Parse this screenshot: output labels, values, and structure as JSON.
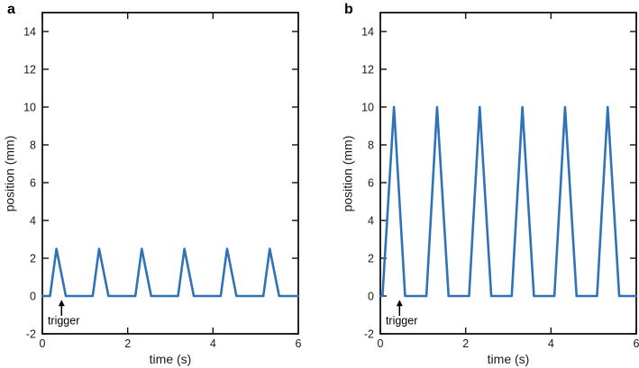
{
  "figure": {
    "background": "#ffffff",
    "description": "Two-panel line figure showing triangular position pulses vs time"
  },
  "style": {
    "line_color": "#2f72b8",
    "axis_color": "#111111",
    "tick_label_color": "#1a1a1a",
    "line_width": 2.6,
    "frame_width": 1.8,
    "tick_length": 7
  },
  "chart_data": [
    {
      "type": "line",
      "panel": "a",
      "xlabel": "time (s)",
      "ylabel": "position (mm)",
      "xlim": [
        0,
        6
      ],
      "ylim": [
        -2,
        15
      ],
      "xticks": [
        0,
        2,
        4,
        6
      ],
      "yticks": [
        -2,
        0,
        2,
        4,
        6,
        8,
        10,
        12,
        14
      ],
      "grid": false,
      "legend_position": "none",
      "pulse_amplitude_mm": 2.5,
      "pulse_period_s": 1.0,
      "series": [
        {
          "name": "position",
          "points": [
            [
              0,
              0
            ],
            [
              0.18,
              0
            ],
            [
              0.33,
              2.5
            ],
            [
              0.55,
              0
            ],
            [
              1.18,
              0
            ],
            [
              1.33,
              2.5
            ],
            [
              1.55,
              0
            ],
            [
              2.18,
              0
            ],
            [
              2.33,
              2.5
            ],
            [
              2.55,
              0
            ],
            [
              3.18,
              0
            ],
            [
              3.33,
              2.5
            ],
            [
              3.55,
              0
            ],
            [
              4.18,
              0
            ],
            [
              4.33,
              2.5
            ],
            [
              4.55,
              0
            ],
            [
              5.18,
              0
            ],
            [
              5.33,
              2.5
            ],
            [
              5.55,
              0
            ],
            [
              6,
              0
            ]
          ]
        }
      ],
      "annotation": {
        "text": "trigger",
        "arrow": {
          "x": 0.45,
          "y_from": -1.05,
          "y_to": -0.2
        },
        "text_pos": [
          0.5,
          -1.5
        ]
      }
    },
    {
      "type": "line",
      "panel": "b",
      "xlabel": "time (s)",
      "ylabel": "position (mm)",
      "xlim": [
        0,
        6
      ],
      "ylim": [
        -2,
        15
      ],
      "xticks": [
        0,
        2,
        4,
        6
      ],
      "yticks": [
        -2,
        0,
        2,
        4,
        6,
        8,
        10,
        12,
        14
      ],
      "grid": false,
      "legend_position": "none",
      "pulse_amplitude_mm": 10,
      "pulse_period_s": 1.0,
      "series": [
        {
          "name": "position",
          "points": [
            [
              0,
              0
            ],
            [
              0.05,
              0
            ],
            [
              0.32,
              10
            ],
            [
              0.58,
              0
            ],
            [
              1.08,
              0
            ],
            [
              1.33,
              10
            ],
            [
              1.6,
              0
            ],
            [
              2.08,
              0
            ],
            [
              2.33,
              10
            ],
            [
              2.6,
              0
            ],
            [
              3.08,
              0
            ],
            [
              3.33,
              10
            ],
            [
              3.6,
              0
            ],
            [
              4.08,
              0
            ],
            [
              4.33,
              10
            ],
            [
              4.6,
              0
            ],
            [
              5.08,
              0
            ],
            [
              5.33,
              10
            ],
            [
              5.6,
              0
            ],
            [
              6,
              0
            ]
          ]
        }
      ],
      "annotation": {
        "text": "trigger",
        "arrow": {
          "x": 0.45,
          "y_from": -1.05,
          "y_to": -0.2
        },
        "text_pos": [
          0.5,
          -1.5
        ]
      }
    }
  ]
}
